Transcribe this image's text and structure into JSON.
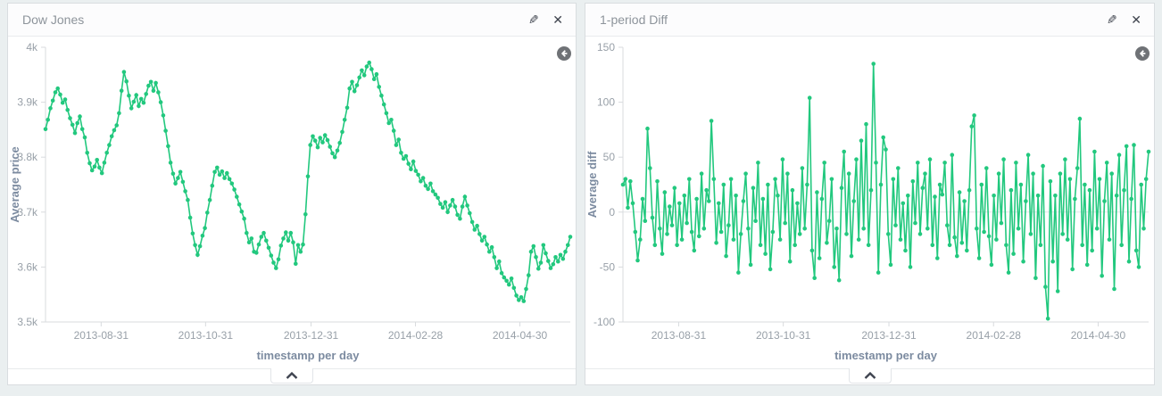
{
  "page": {
    "background": "#eaeff0",
    "accent_green": "#22c87e"
  },
  "panels": [
    {
      "title": "Dow Jones",
      "icons": {
        "edit_glyph": "✎",
        "close_glyph": "✕"
      }
    },
    {
      "title": "1-period Diff",
      "icons": {
        "edit_glyph": "✎",
        "close_glyph": "✕"
      }
    }
  ],
  "chart_data": [
    {
      "type": "line",
      "title": "Dow Jones",
      "ylabel": "Average price",
      "xlabel": "timestamp per day",
      "legend_position": "none",
      "grid": "off",
      "color": "#22c87e",
      "ylim": [
        3500,
        4000
      ],
      "y_ticks": [
        {
          "v": 4000,
          "label": "4k"
        },
        {
          "v": 3900,
          "label": "3.9k"
        },
        {
          "v": 3800,
          "label": "3.8k"
        },
        {
          "v": 3700,
          "label": "3.7k"
        },
        {
          "v": 3600,
          "label": "3.6k"
        },
        {
          "v": 3500,
          "label": "3.5k"
        }
      ],
      "x_ticks": [
        {
          "f": 0.106,
          "label": "2013-08-31"
        },
        {
          "f": 0.305,
          "label": "2013-10-31"
        },
        {
          "f": 0.506,
          "label": "2013-12-31"
        },
        {
          "f": 0.705,
          "label": "2014-02-28"
        },
        {
          "f": 0.904,
          "label": "2014-04-30"
        }
      ],
      "zero_line": false,
      "values": [
        3851,
        3868,
        3889,
        3903,
        3918,
        3925,
        3914,
        3899,
        3905,
        3886,
        3871,
        3859,
        3844,
        3862,
        3874,
        3851,
        3836,
        3808,
        3789,
        3776,
        3783,
        3795,
        3781,
        3771,
        3790,
        3808,
        3822,
        3838,
        3849,
        3858,
        3880,
        3921,
        3955,
        3938,
        3912,
        3889,
        3901,
        3913,
        3893,
        3906,
        3899,
        3915,
        3930,
        3937,
        3921,
        3935,
        3918,
        3900,
        3876,
        3848,
        3820,
        3790,
        3770,
        3752,
        3762,
        3773,
        3755,
        3738,
        3722,
        3690,
        3661,
        3640,
        3622,
        3638,
        3657,
        3671,
        3699,
        3722,
        3748,
        3773,
        3781,
        3768,
        3774,
        3762,
        3771,
        3760,
        3752,
        3741,
        3728,
        3714,
        3701,
        3688,
        3662,
        3645,
        3652,
        3628,
        3626,
        3641,
        3655,
        3662,
        3648,
        3635,
        3621,
        3608,
        3598,
        3614,
        3639,
        3652,
        3663,
        3648,
        3662,
        3645,
        3606,
        3640,
        3628,
        3641,
        3696,
        3765,
        3822,
        3838,
        3830,
        3818,
        3835,
        3827,
        3840,
        3831,
        3819,
        3807,
        3800,
        3812,
        3826,
        3846,
        3868,
        3890,
        3925,
        3937,
        3920,
        3931,
        3945,
        3958,
        3949,
        3965,
        3972,
        3960,
        3942,
        3951,
        3928,
        3912,
        3896,
        3880,
        3862,
        3868,
        3848,
        3822,
        3832,
        3808,
        3797,
        3802,
        3788,
        3778,
        3792,
        3775,
        3768,
        3756,
        3762,
        3748,
        3742,
        3752,
        3738,
        3732,
        3726,
        3715,
        3708,
        3718,
        3700,
        3712,
        3722,
        3710,
        3695,
        3688,
        3710,
        3728,
        3712,
        3698,
        3682,
        3668,
        3675,
        3660,
        3648,
        3655,
        3641,
        3628,
        3636,
        3618,
        3598,
        3610,
        3589,
        3581,
        3575,
        3568,
        3579,
        3562,
        3548,
        3540,
        3545,
        3538,
        3560,
        3585,
        3628,
        3638,
        3618,
        3597,
        3608,
        3640,
        3625,
        3611,
        3598,
        3605,
        3618,
        3610,
        3622,
        3615,
        3628,
        3640,
        3655
      ]
    },
    {
      "type": "line",
      "title": "1-period Diff",
      "ylabel": "Average diff",
      "xlabel": "timestamp per day",
      "legend_position": "none",
      "grid": "zero-line-only",
      "color": "#22c87e",
      "ylim": [
        -100,
        150
      ],
      "y_ticks": [
        {
          "v": 150,
          "label": "150"
        },
        {
          "v": 100,
          "label": "100"
        },
        {
          "v": 50,
          "label": "50"
        },
        {
          "v": 0,
          "label": "0"
        },
        {
          "v": -50,
          "label": "-50"
        },
        {
          "v": -100,
          "label": "-100"
        }
      ],
      "x_ticks": [
        {
          "f": 0.106,
          "label": "2013-08-31"
        },
        {
          "f": 0.305,
          "label": "2013-10-31"
        },
        {
          "f": 0.506,
          "label": "2013-12-31"
        },
        {
          "f": 0.705,
          "label": "2014-02-28"
        },
        {
          "f": 0.904,
          "label": "2014-04-30"
        }
      ],
      "zero_line": true,
      "values": [
        25,
        30,
        4,
        28,
        8,
        -18,
        -44,
        -25,
        12,
        -8,
        76,
        40,
        -5,
        -30,
        28,
        -15,
        -38,
        18,
        -20,
        5,
        -12,
        22,
        -30,
        8,
        -25,
        15,
        -10,
        30,
        -18,
        -35,
        12,
        -22,
        35,
        -15,
        20,
        10,
        83,
        30,
        -28,
        8,
        -18,
        25,
        -40,
        -12,
        30,
        -25,
        15,
        -55,
        -20,
        10,
        35,
        -15,
        -48,
        22,
        -8,
        45,
        -30,
        12,
        -38,
        25,
        -52,
        -18,
        30,
        15,
        -25,
        48,
        -10,
        35,
        -45,
        20,
        -30,
        8,
        -20,
        40,
        -15,
        25,
        104,
        -35,
        -60,
        18,
        -42,
        12,
        45,
        -28,
        -8,
        30,
        -50,
        -15,
        -62,
        22,
        55,
        -20,
        35,
        -40,
        10,
        48,
        -25,
        65,
        -15,
        80,
        -30,
        20,
        135,
        45,
        -55,
        25,
        68,
        57,
        -20,
        -48,
        30,
        -12,
        40,
        -25,
        8,
        -35,
        15,
        -50,
        28,
        -10,
        45,
        -20,
        22,
        35,
        -15,
        48,
        -30,
        14,
        -42,
        25,
        16,
        45,
        -12,
        -30,
        52,
        -23,
        -40,
        18,
        -28,
        10,
        -35,
        20,
        78,
        88,
        -15,
        -42,
        25,
        -18,
        40,
        -22,
        -48,
        15,
        -25,
        35,
        -10,
        48,
        -30,
        -55,
        20,
        -38,
        45,
        -15,
        25,
        -45,
        10,
        52,
        -20,
        35,
        -60,
        15,
        -30,
        42,
        -68,
        -97,
        28,
        -45,
        15,
        -72,
        35,
        -20,
        48,
        -25,
        30,
        -52,
        12,
        40,
        85,
        -30,
        25,
        -48,
        20,
        -35,
        55,
        -15,
        30,
        -58,
        10,
        45,
        -25,
        35,
        -70,
        15,
        52,
        -30,
        20,
        60,
        -45,
        12,
        61,
        -35,
        -50,
        25,
        -15,
        30,
        55
      ]
    }
  ]
}
